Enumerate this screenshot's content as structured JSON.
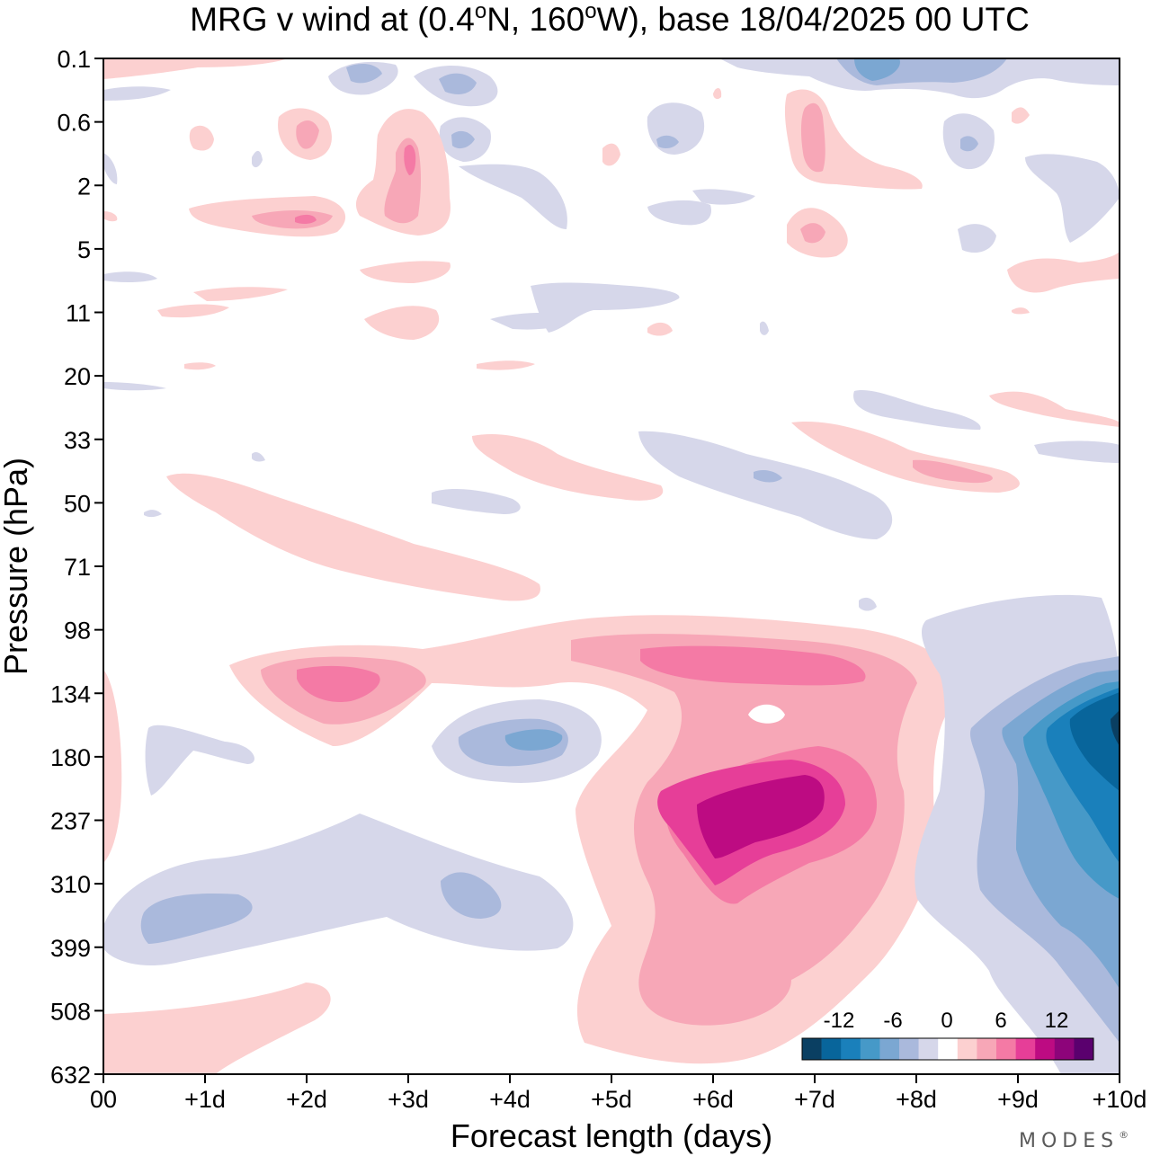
{
  "chart_data": {
    "type": "heatmap",
    "title_parts": {
      "prefix": "MRG v wind at (0.4",
      "deg1": "o",
      "mid": "N, 160",
      "deg2": "o",
      "suffix": "W),  base 18/04/2025  00 UTC"
    },
    "xlabel": "Forecast length (days)",
    "ylabel": "Pressure (hPa)",
    "x_ticks": [
      "00",
      "+1d",
      "+2d",
      "+3d",
      "+4d",
      "+5d",
      "+6d",
      "+7d",
      "+8d",
      "+9d",
      "+10d"
    ],
    "xlim": [
      0,
      10
    ],
    "y_ticks": [
      "0.1",
      "0.6",
      "2",
      "5",
      "11",
      "20",
      "33",
      "50",
      "71",
      "98",
      "134",
      "180",
      "237",
      "310",
      "399",
      "508",
      "632"
    ],
    "grid": false,
    "colorbar": {
      "placement": "bottom-right",
      "labels": [
        "-12",
        "-6",
        "0",
        "6",
        "12"
      ],
      "colors": [
        "#0a3f62",
        "#08659b",
        "#1a80bb",
        "#4699c8",
        "#7ba7d2",
        "#aab9dc",
        "#d6d7ea",
        "#ffffff",
        "#fcd0d0",
        "#f7a7b7",
        "#f47aa5",
        "#e63e98",
        "#bd0b82",
        "#8d047a",
        "#5a006e"
      ]
    },
    "features": [
      {
        "sign": "positive",
        "center": [
          "+6.3d",
          "220 hPa"
        ],
        "peak": 14
      },
      {
        "sign": "positive",
        "center": [
          "+6.8d",
          "115 hPa"
        ],
        "peak": 8
      },
      {
        "sign": "positive",
        "center": [
          "+2.2d",
          "130 hPa"
        ],
        "peak": 8
      },
      {
        "sign": "negative",
        "center": [
          "+10d",
          "180 hPa"
        ],
        "peak": -14
      },
      {
        "sign": "negative",
        "center": [
          "+4.2d",
          "165 hPa"
        ],
        "peak": -5
      },
      {
        "sign": "negative",
        "center": [
          "+7.7d",
          "0.2 hPa"
        ],
        "peak": -7
      },
      {
        "sign": "positive",
        "center": [
          "+3d",
          "3 hPa"
        ],
        "peak": 8
      },
      {
        "sign": "positive",
        "center": [
          "+3.5d",
          "60 hPa"
        ],
        "peak": 3
      }
    ]
  },
  "brand": {
    "logo": "MODES",
    "mark": "®"
  }
}
